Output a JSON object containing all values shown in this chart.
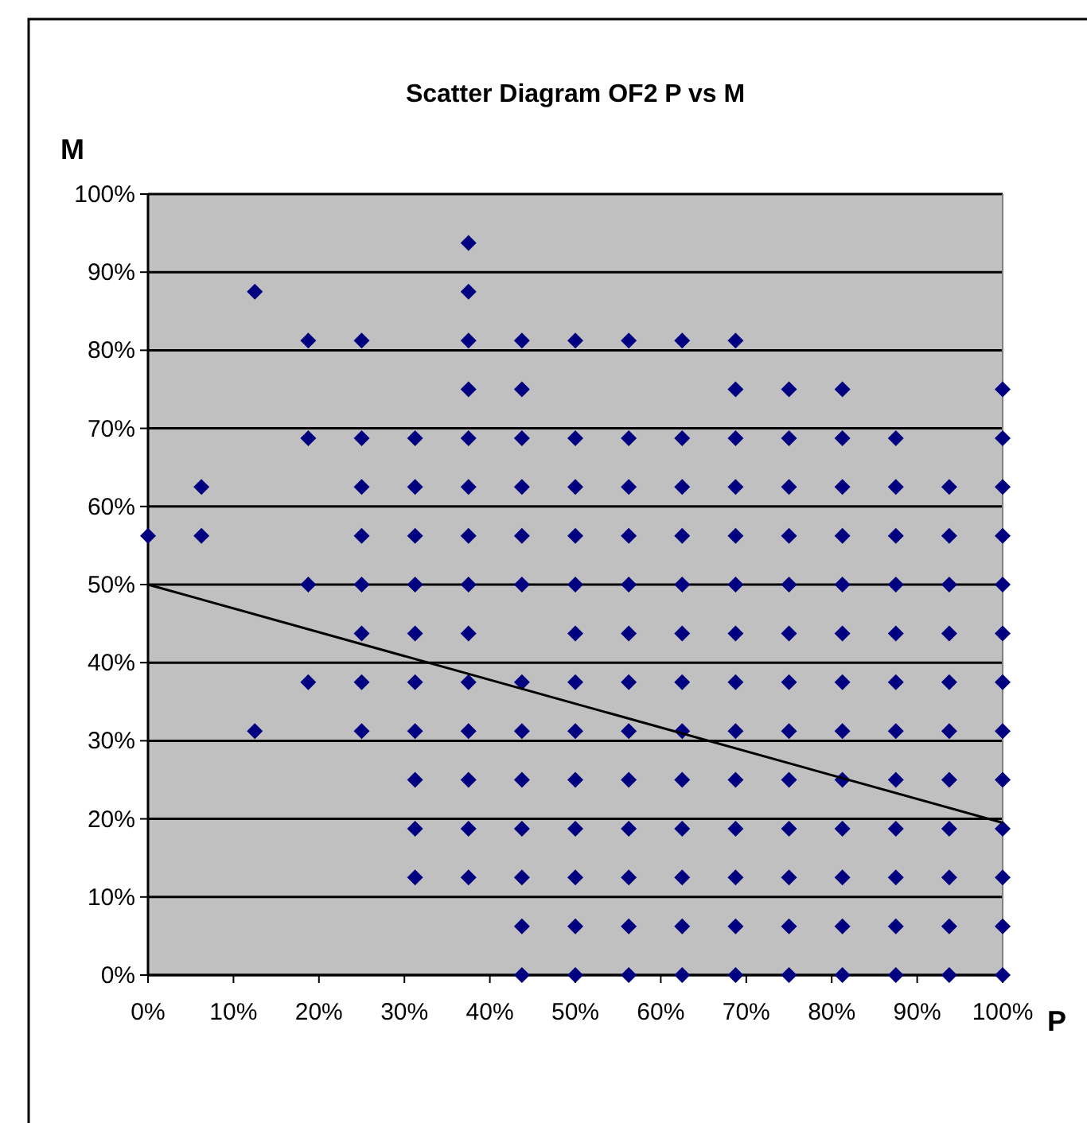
{
  "chart_data": {
    "type": "scatter",
    "title": "Scatter Diagram OF2 P vs M",
    "xlabel": "P",
    "ylabel": "M",
    "xlim": [
      0,
      100
    ],
    "ylim": [
      0,
      100
    ],
    "xticks": [
      {
        "value": 0,
        "label": "0%"
      },
      {
        "value": 10,
        "label": "10%"
      },
      {
        "value": 20,
        "label": "20%"
      },
      {
        "value": 30,
        "label": "30%"
      },
      {
        "value": 40,
        "label": "40%"
      },
      {
        "value": 50,
        "label": "50%"
      },
      {
        "value": 60,
        "label": "60%"
      },
      {
        "value": 70,
        "label": "70%"
      },
      {
        "value": 80,
        "label": "80%"
      },
      {
        "value": 90,
        "label": "90%"
      },
      {
        "value": 100,
        "label": "100%"
      }
    ],
    "yticks": [
      {
        "value": 0,
        "label": "0%"
      },
      {
        "value": 10,
        "label": "10%"
      },
      {
        "value": 20,
        "label": "20%"
      },
      {
        "value": 30,
        "label": "30%"
      },
      {
        "value": 40,
        "label": "40%"
      },
      {
        "value": 50,
        "label": "50%"
      },
      {
        "value": 60,
        "label": "60%"
      },
      {
        "value": 70,
        "label": "70%"
      },
      {
        "value": 80,
        "label": "80%"
      },
      {
        "value": 90,
        "label": "90%"
      },
      {
        "value": 100,
        "label": "100%"
      }
    ],
    "grid": "y",
    "series": [
      {
        "color": "#000080",
        "marker": "diamond",
        "x": [
          0,
          6.25,
          6.25,
          12.5,
          12.5,
          18.75,
          18.75,
          18.75,
          18.75,
          25,
          25,
          25,
          25,
          25,
          25,
          25,
          25,
          31.25,
          31.25,
          31.25,
          31.25,
          31.25,
          31.25,
          31.25,
          31.25,
          31.25,
          31.25,
          37.5,
          37.5,
          37.5,
          37.5,
          37.5,
          37.5,
          37.5,
          37.5,
          37.5,
          37.5,
          37.5,
          37.5,
          37.5,
          37.5,
          43.75,
          43.75,
          43.75,
          43.75,
          43.75,
          43.75,
          43.75,
          43.75,
          43.75,
          43.75,
          43.75,
          43.75,
          43.75,
          50,
          50,
          50,
          50,
          50,
          50,
          50,
          50,
          50,
          50,
          50,
          50,
          50,
          56.25,
          56.25,
          56.25,
          56.25,
          56.25,
          56.25,
          56.25,
          56.25,
          56.25,
          56.25,
          56.25,
          56.25,
          56.25,
          62.5,
          62.5,
          62.5,
          62.5,
          62.5,
          62.5,
          62.5,
          62.5,
          62.5,
          62.5,
          62.5,
          62.5,
          62.5,
          68.75,
          68.75,
          68.75,
          68.75,
          68.75,
          68.75,
          68.75,
          68.75,
          68.75,
          68.75,
          68.75,
          68.75,
          68.75,
          68.75,
          75,
          75,
          75,
          75,
          75,
          75,
          75,
          75,
          75,
          75,
          75,
          75,
          75,
          81.25,
          81.25,
          81.25,
          81.25,
          81.25,
          81.25,
          81.25,
          81.25,
          81.25,
          81.25,
          81.25,
          81.25,
          81.25,
          87.5,
          87.5,
          87.5,
          87.5,
          87.5,
          87.5,
          87.5,
          87.5,
          87.5,
          87.5,
          87.5,
          87.5,
          93.75,
          93.75,
          93.75,
          93.75,
          93.75,
          93.75,
          93.75,
          93.75,
          93.75,
          93.75,
          93.75,
          100,
          100,
          100,
          100,
          100,
          100,
          100,
          100,
          100,
          100,
          100,
          100,
          100
        ],
        "values": [
          56.25,
          56.25,
          62.5,
          31.25,
          87.5,
          37.5,
          50,
          68.75,
          81.25,
          31.25,
          37.5,
          43.75,
          50,
          56.25,
          62.5,
          68.75,
          81.25,
          12.5,
          18.75,
          25,
          31.25,
          37.5,
          43.75,
          50,
          56.25,
          62.5,
          68.75,
          12.5,
          18.75,
          25,
          31.25,
          37.5,
          43.75,
          50,
          56.25,
          62.5,
          68.75,
          75,
          81.25,
          87.5,
          93.75,
          0,
          6.25,
          12.5,
          18.75,
          25,
          31.25,
          37.5,
          50,
          56.25,
          62.5,
          68.75,
          75,
          81.25,
          0,
          6.25,
          12.5,
          18.75,
          25,
          31.25,
          37.5,
          43.75,
          50,
          56.25,
          62.5,
          68.75,
          81.25,
          0,
          6.25,
          12.5,
          18.75,
          25,
          31.25,
          37.5,
          43.75,
          50,
          56.25,
          62.5,
          68.75,
          81.25,
          0,
          6.25,
          12.5,
          18.75,
          25,
          31.25,
          37.5,
          43.75,
          50,
          56.25,
          62.5,
          68.75,
          81.25,
          0,
          6.25,
          12.5,
          18.75,
          25,
          31.25,
          37.5,
          43.75,
          50,
          56.25,
          62.5,
          68.75,
          75,
          81.25,
          0,
          6.25,
          12.5,
          18.75,
          25,
          31.25,
          37.5,
          43.75,
          50,
          56.25,
          62.5,
          68.75,
          75,
          0,
          6.25,
          12.5,
          18.75,
          25,
          31.25,
          37.5,
          43.75,
          50,
          56.25,
          62.5,
          68.75,
          75,
          0,
          6.25,
          12.5,
          18.75,
          25,
          31.25,
          37.5,
          43.75,
          50,
          56.25,
          62.5,
          68.75,
          0,
          6.25,
          12.5,
          18.75,
          25,
          31.25,
          37.5,
          43.75,
          50,
          56.25,
          62.5,
          0,
          6.25,
          12.5,
          18.75,
          25,
          31.25,
          37.5,
          43.75,
          50,
          56.25,
          62.5,
          68.75,
          75
        ]
      },
      {
        "type": "line",
        "color": "#000000",
        "marker": "none",
        "line_style": "solid",
        "x": [
          0,
          100
        ],
        "values": [
          50,
          19.5
        ]
      }
    ]
  }
}
